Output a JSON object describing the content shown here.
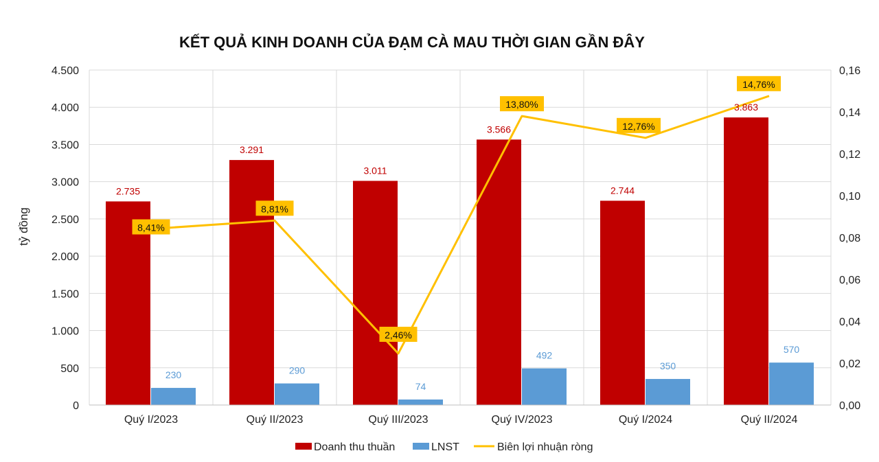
{
  "chart_data": {
    "type": "bar",
    "title": "KẾT QUẢ KINH DOANH CỦA ĐẠM CÀ MAU THỜI GIAN GẦN ĐÂY",
    "ylabel": "tỷ đồng",
    "categories": [
      "Quý I/2023",
      "Quý II/2023",
      "Quý III/2023",
      "Quý IV/2023",
      "Quý I/2024",
      "Quý II/2024"
    ],
    "ylim": [
      0,
      4500
    ],
    "y_ticks": [
      0,
      500,
      1000,
      1500,
      2000,
      2500,
      3000,
      3500,
      4000,
      4500
    ],
    "y_tick_labels": [
      "0",
      "500",
      "1.000",
      "1.500",
      "2.000",
      "2.500",
      "3.000",
      "3.500",
      "4.000",
      "4.500"
    ],
    "y2lim": [
      0,
      0.16
    ],
    "y2_ticks": [
      0,
      0.02,
      0.04,
      0.06,
      0.08,
      0.1,
      0.12,
      0.14,
      0.16
    ],
    "y2_tick_labels": [
      "0,00",
      "0,02",
      "0,04",
      "0,06",
      "0,08",
      "0,10",
      "0,12",
      "0,14",
      "0,16"
    ],
    "grid": true,
    "legend_position": "bottom",
    "series": [
      {
        "name": "Doanh thu thuần",
        "type": "bar",
        "axis": "left",
        "color": "#C00000",
        "label_color": "#C00000",
        "values": [
          2735,
          3291,
          3011,
          3566,
          2744,
          3863
        ],
        "labels": [
          "2.735",
          "3.291",
          "3.011",
          "3.566",
          "2.744",
          "3.863"
        ]
      },
      {
        "name": "LNST",
        "type": "bar",
        "axis": "left",
        "color": "#5B9BD5",
        "label_color": "#5B9BD5",
        "values": [
          230,
          290,
          74,
          492,
          350,
          570
        ],
        "labels": [
          "230",
          "290",
          "74",
          "492",
          "350",
          "570"
        ]
      },
      {
        "name": "Biên lợi nhuận ròng",
        "type": "line",
        "axis": "right",
        "color": "#FFC000",
        "values": [
          0.0841,
          0.0881,
          0.0246,
          0.138,
          0.1276,
          0.1476
        ],
        "labels": [
          "8,41%",
          "8,81%",
          "2,46%",
          "13,80%",
          "12,76%",
          "14,76%"
        ]
      }
    ]
  }
}
